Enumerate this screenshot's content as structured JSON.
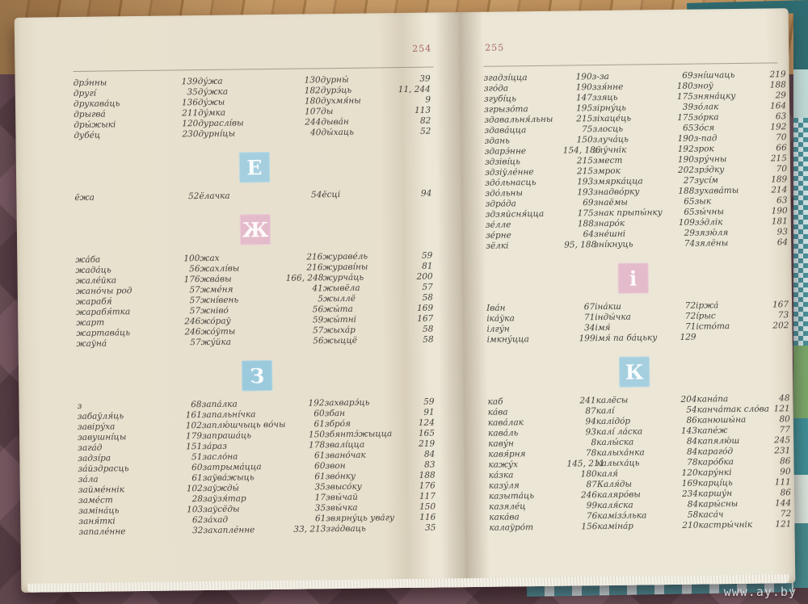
{
  "watermark": "www.ay.by",
  "pages": {
    "left": {
      "number": "254",
      "sections": [
        {
          "kind": "rows",
          "name": "d-entries",
          "rows": [
            [
              "дрэ́нны",
              "139",
              "ду́жа",
              "130",
              "дурны́",
              "39"
            ],
            [
              "другі́",
              "35",
              "ду́жка",
              "182",
              "дурэ́ць",
              "11, 244"
            ],
            [
              "друкава́ць",
              "136",
              "ду́жы",
              "180",
              "духмя́ны",
              "9"
            ],
            [
              "дрыгва́",
              "211",
              "ду́мка",
              "107",
              "ды",
              "113"
            ],
            [
              "дры́жыкі",
              "120",
              "дураслі́вы",
              "244",
              "дыва́н",
              "82"
            ],
            [
              "дубе́ц",
              "230",
              "дурні́цы",
              "40",
              "ды́хаць",
              "52"
            ]
          ]
        },
        {
          "kind": "badge",
          "letter": "Е",
          "color": "#a5cfdf"
        },
        {
          "kind": "rows",
          "name": "e-entries",
          "rows": [
            [
              "ёжа",
              "52",
              "ёлачка",
              "54",
              "ёсці",
              "94"
            ]
          ]
        },
        {
          "kind": "badge",
          "letter": "Ж",
          "color": "#e4bbca"
        },
        {
          "kind": "rows",
          "name": "zh-entries",
          "rows": [
            [
              "жа́ба",
              "100",
              "жах",
              "216",
              "жураве́ль",
              "59"
            ],
            [
              "жада́ць",
              "56",
              "жахлі́вы",
              "216",
              "жураві́ны",
              "81"
            ],
            [
              "жале́йка",
              "176",
              "жва́вы",
              "166, 248",
              "журча́ць",
              "200"
            ],
            [
              "жано́чы род",
              "57",
              "жме́ня",
              "41",
              "жывёла",
              "57"
            ],
            [
              "жарабя́",
              "57",
              "жні́вень",
              "5",
              "жыллё",
              "58"
            ],
            [
              "жарабя́тка",
              "57",
              "жніво́",
              "56",
              "жы́та",
              "169"
            ],
            [
              "жарт",
              "246",
              "жо́раў",
              "59",
              "жы́тні",
              "167"
            ],
            [
              "жартава́ць",
              "246",
              "жо́ўты",
              "57",
              "жыха́р",
              "58"
            ],
            [
              "жаўна́",
              "57",
              "жу́йка",
              "56",
              "жыццё",
              "58"
            ]
          ]
        },
        {
          "kind": "badge",
          "letter": "З",
          "color": "#9ccadd"
        },
        {
          "kind": "rows",
          "name": "z-entries",
          "rows": [
            [
              "з",
              "68",
              "запа́лка",
              "192",
              "захварэ́ць",
              "59"
            ],
            [
              "забаўля́ць",
              "161",
              "запальні́чка",
              "60",
              "збан",
              "91"
            ],
            [
              "завіру́ха",
              "102",
              "заплю́шчыць во́чы",
              "61",
              "збро́я",
              "124"
            ],
            [
              "завушні́цы",
              "179",
              "запраша́ць",
              "150",
              "збянтэ́жыцца",
              "165"
            ],
            [
              "зага́д",
              "151",
              "за́раз",
              "178",
              "звалі́цца",
              "219"
            ],
            [
              "задзі́ра",
              "51",
              "засло́на",
              "61",
              "звано́чак",
              "84"
            ],
            [
              "за́йздрасць",
              "60",
              "затрыма́цца",
              "60",
              "звон",
              "83"
            ],
            [
              "за́ла",
              "61",
              "заўва́жыць",
              "61",
              "зво́нку",
              "188"
            ],
            [
              "займе́ннік",
              "102",
              "заўжды́",
              "35",
              "звысо́ку",
              "176"
            ],
            [
              "заме́ст",
              "28",
              "заўзя́тар",
              "17",
              "звы́чай",
              "117"
            ],
            [
              "заміна́ць",
              "103",
              "заўсёды",
              "35",
              "звы́чка",
              "150"
            ],
            [
              "заня́ткі",
              "62",
              "за́хад",
              "61",
              "звярну́ць ува́гу",
              "116"
            ],
            [
              "запале́нне",
              "32",
              "захапле́нне",
              "33, 213",
              "зга́дваць",
              "35"
            ]
          ]
        }
      ]
    },
    "right": {
      "number": "255",
      "sections": [
        {
          "kind": "rows",
          "name": "z-entries-continued",
          "rows": [
            [
              "згадзі́цца",
              "190",
              "з-за",
              "69",
              "зні́шчаць",
              "219"
            ],
            [
              "зго́да",
              "190",
              "ззя́нне",
              "180",
              "зноў",
              "188"
            ],
            [
              "згубі́ць",
              "147",
              "ззяць",
              "175",
              "зняна́цку",
              "29"
            ],
            [
              "згрызо́та",
              "195",
              "зірну́ць",
              "39",
              "зо́лак",
              "164"
            ],
            [
              "здавальня́льны",
              "215",
              "зіхаце́ць",
              "175",
              "зо́рка",
              "63"
            ],
            [
              "здава́цца",
              "75",
              "злосць",
              "65",
              "Зо́ся",
              "192"
            ],
            [
              "здань",
              "150",
              "злуча́ць",
              "190",
              "з-пад",
              "70"
            ],
            [
              "здарэ́нне",
              "154, 186",
              "злу́чнік",
              "192",
              "зрок",
              "66"
            ],
            [
              "здзіві́ць",
              "215",
              "змест",
              "190",
              "зру́чны",
              "215"
            ],
            [
              "здзіўле́нне",
              "215",
              "змрок",
              "202",
              "зрэ́дку",
              "70"
            ],
            [
              "здо́льнасць",
              "193",
              "змярка́цца",
              "27",
              "зусі́м",
              "189"
            ],
            [
              "здо́льны",
              "193",
              "знадво́рку",
              "188",
              "зухава́ты",
              "214"
            ],
            [
              "здра́да",
              "69",
              "знаёмы",
              "65",
              "зык",
              "63"
            ],
            [
              "здзяйсня́цца",
              "175",
              "знак прыпы́нку",
              "65",
              "зы́чны",
              "190"
            ],
            [
              "зе́лле",
              "188",
              "знаро́к",
              "109",
              "зэ́длік",
              "181"
            ],
            [
              "зе́рне",
              "64",
              "зне́шні",
              "29",
              "зязю́ля",
              "93"
            ],
            [
              "зёлкі",
              "95, 188",
              "зні́кнуць",
              "74",
              "зялёны",
              "64"
            ]
          ]
        },
        {
          "kind": "badge",
          "letter": "і",
          "color": "#e4bbca"
        },
        {
          "kind": "rows",
          "name": "i-entries",
          "rows": [
            [
              "Іва́н",
              "67",
              "іна́кш",
              "72",
              "іржа́",
              "167"
            ],
            [
              "іка́ўка",
              "71",
              "інды́чка",
              "72",
              "і́рыс",
              "73"
            ],
            [
              "ілгу́н",
              "34",
              "імя́",
              "71",
              "істо́та",
              "202"
            ],
            [
              "імкну́цца",
              "199",
              "імя́ па ба́цьку",
              "129",
              "",
              ""
            ]
          ]
        },
        {
          "kind": "badge",
          "letter": "К",
          "color": "#a5cfdf"
        },
        {
          "kind": "rows",
          "name": "k-entries",
          "rows": [
            [
              "каб",
              "241",
              "калёсы",
              "204",
              "кана́па",
              "48"
            ],
            [
              "ка́ва",
              "87",
              "калі́",
              "54",
              "канча́так сло́ва",
              "121"
            ],
            [
              "кава́лак",
              "94",
              "калідо́р",
              "86",
              "канюшы́на",
              "80"
            ],
            [
              "кава́ль",
              "93",
              "калі́ ла́ска",
              "143",
              "капе́ж",
              "77"
            ],
            [
              "каву́н",
              "8",
              "калы́ска",
              "84",
              "капялю́ш",
              "245"
            ],
            [
              "кавя́рня",
              "78",
              "калыха́нка",
              "84",
              "караго́д",
              "231"
            ],
            [
              "кажу́х",
              "145, 211",
              "калыха́ць",
              "78",
              "каро́бка",
              "86"
            ],
            [
              "ка́зка",
              "180",
              "каля́",
              "120",
              "кару́нкі",
              "90"
            ],
            [
              "казу́ля",
              "87",
              "Каля́ды",
              "169",
              "карці́ць",
              "111"
            ],
            [
              "казыта́ць",
              "246",
              "каляро́вы",
              "234",
              "каршу́н",
              "86"
            ],
            [
              "казяле́ц",
              "99",
              "каля́ска",
              "84",
              "кары́сны",
              "144"
            ],
            [
              "кака́ва",
              "76",
              "камізэ́лька",
              "58",
              "каса́ч",
              "72"
            ],
            [
              "калаўро́т",
              "156",
              "каміна́р",
              "210",
              "кастры́чнік",
              "121"
            ]
          ]
        }
      ]
    }
  }
}
